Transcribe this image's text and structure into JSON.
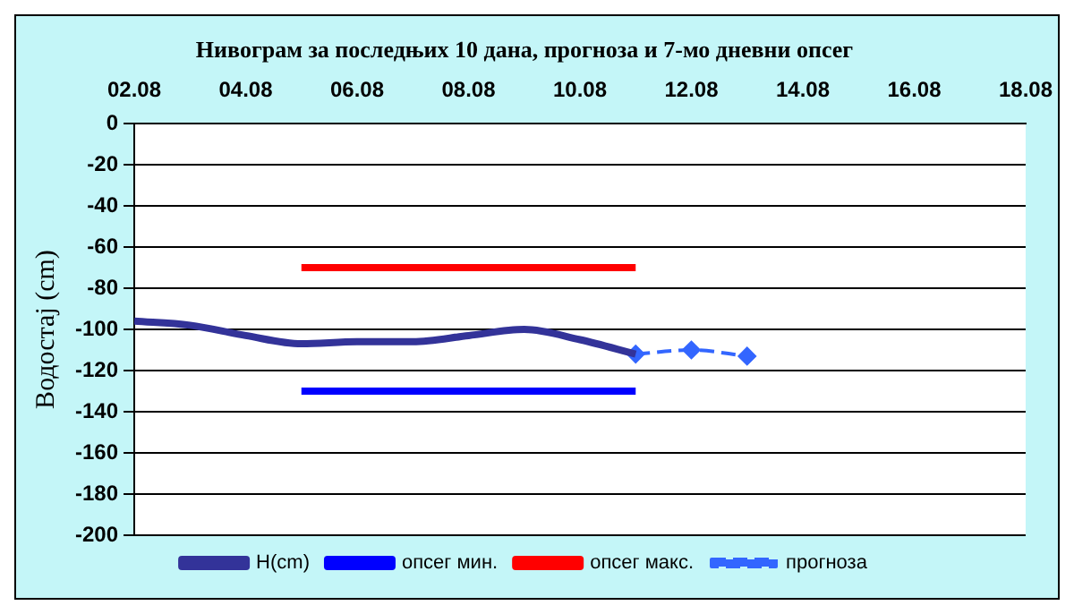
{
  "chart_data": {
    "type": "line",
    "title": "Нивограм за последњих 10 дана, прогноза и 7-мо дневни опсег",
    "ylabel": "Водостај (cm)",
    "xlim": [
      "--08-02",
      "--08-18"
    ],
    "xticks": [
      {
        "value": "--08-02",
        "label": "02.08"
      },
      {
        "value": "--08-04",
        "label": "04.08"
      },
      {
        "value": "--08-06",
        "label": "06.08"
      },
      {
        "value": "--08-08",
        "label": "08.08"
      },
      {
        "value": "--08-10",
        "label": "10.08"
      },
      {
        "value": "--08-12",
        "label": "12.08"
      },
      {
        "value": "--08-14",
        "label": "14.08"
      },
      {
        "value": "--08-16",
        "label": "16.08"
      },
      {
        "value": "--08-18",
        "label": "18.08"
      }
    ],
    "ylim": [
      -200,
      0
    ],
    "yticks": [
      0,
      -20,
      -40,
      -60,
      -80,
      -100,
      -120,
      -140,
      -160,
      -180,
      -200
    ],
    "grid": "y",
    "legend": "bottom",
    "series": [
      {
        "name": "H(cm)",
        "color": "#333399",
        "x": [
          "--08-02",
          "--08-03",
          "--08-04",
          "--08-05",
          "--08-06",
          "--08-07",
          "--08-08",
          "--08-09",
          "--08-10",
          "--08-11"
        ],
        "values": [
          -96,
          -98,
          -103,
          -107,
          -106,
          -106,
          -103,
          -100,
          -105,
          -112
        ],
        "marker": "none",
        "line_style": "solid"
      },
      {
        "name": "опсег мин.",
        "color": "#0000ff",
        "x": [
          "--08-05",
          "--08-11"
        ],
        "values": [
          -130,
          -130
        ],
        "marker": "none",
        "line_style": "solid"
      },
      {
        "name": "опсег макс.",
        "color": "#ff0000",
        "x": [
          "--08-05",
          "--08-11"
        ],
        "values": [
          -70,
          -70
        ],
        "marker": "none",
        "line_style": "solid"
      },
      {
        "name": "прогноза",
        "color": "#3366ff",
        "x": [
          "--08-11",
          "--08-12",
          "--08-13"
        ],
        "values": [
          -112,
          -110,
          -113
        ],
        "marker": "diamond",
        "line_style": "dashed"
      }
    ]
  }
}
